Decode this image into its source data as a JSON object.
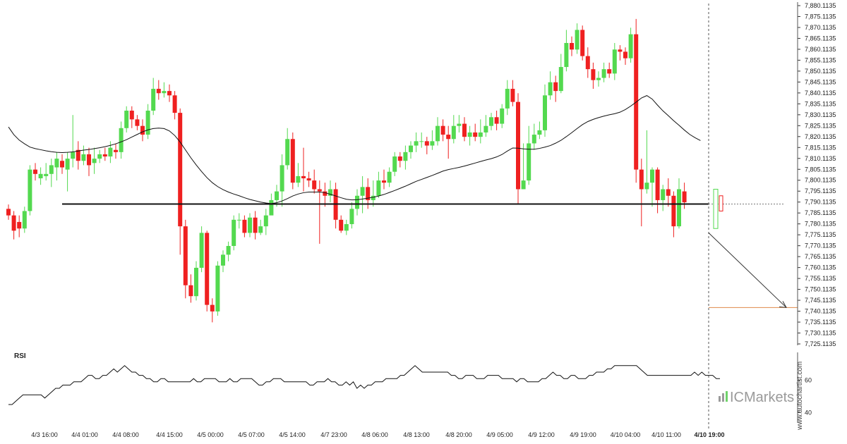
{
  "chart_data": [
    {
      "type": "candlestick",
      "title": "",
      "x_ticks": [
        "4/3 16:00",
        "4/4 01:00",
        "4/4 08:00",
        "4/4 15:00",
        "4/5 00:00",
        "4/5 07:00",
        "4/5 14:00",
        "4/7 23:00",
        "4/8 06:00",
        "4/8 13:00",
        "4/8 20:00",
        "4/9 05:00",
        "4/9 12:00",
        "4/9 19:00",
        "4/10 04:00",
        "4/10 11:00",
        "4/10 19:00"
      ],
      "y_ticks": [
        "7,880.1135",
        "7,875.1135",
        "7,870.1135",
        "7,865.1135",
        "7,860.1135",
        "7,855.1135",
        "7,850.1135",
        "7,845.1135",
        "7,840.1135",
        "7,835.1135",
        "7,830.1135",
        "7,825.1135",
        "7,820.1135",
        "7,815.1135",
        "7,810.1135",
        "7,805.1135",
        "7,800.1135",
        "7,795.1135",
        "7,790.1135",
        "7,785.1135",
        "7,780.1135",
        "7,775.1135",
        "7,770.1135",
        "7,765.1135",
        "7,760.1135",
        "7,755.1135",
        "7,750.1135",
        "7,745.1135",
        "7,740.1135",
        "7,735.1135",
        "7,730.1135",
        "7,725.1135"
      ],
      "ylim": [
        7725.1135,
        7880.1135
      ],
      "level_line": 7789.2,
      "target_level": 7741.8,
      "candles": [
        [
          7787,
          7784,
          7789,
          7782
        ],
        [
          7784,
          7777,
          7786,
          7773
        ],
        [
          7781,
          7778,
          7784,
          7774
        ],
        [
          7778,
          7786,
          7788,
          7776
        ],
        [
          7786,
          7805,
          7807,
          7784
        ],
        [
          7805,
          7803,
          7808,
          7800
        ],
        [
          7801,
          7803,
          7806,
          7798
        ],
        [
          7802,
          7803,
          7808,
          7800
        ],
        [
          7803,
          7807,
          7810,
          7797
        ],
        [
          7806,
          7810,
          7813,
          7800
        ],
        [
          7809,
          7806,
          7812,
          7803
        ],
        [
          7805,
          7810,
          7813,
          7795
        ],
        [
          7810,
          7813,
          7830,
          7806
        ],
        [
          7814,
          7809,
          7818,
          7805
        ],
        [
          7809,
          7812,
          7816,
          7807
        ],
        [
          7812,
          7807,
          7815,
          7802
        ],
        [
          7808,
          7810,
          7815,
          7803
        ],
        [
          7810,
          7812,
          7814,
          7808
        ],
        [
          7812,
          7811,
          7815,
          7809
        ],
        [
          7811,
          7815,
          7818,
          7808
        ],
        [
          7814,
          7813,
          7817,
          7810
        ],
        [
          7813,
          7824,
          7827,
          7810
        ],
        [
          7824,
          7832,
          7834,
          7822
        ],
        [
          7832,
          7828,
          7834,
          7824
        ],
        [
          7828,
          7825,
          7830,
          7823
        ],
        [
          7825,
          7821,
          7828,
          7818
        ],
        [
          7821,
          7832,
          7835,
          7819
        ],
        [
          7832,
          7842,
          7847,
          7830
        ],
        [
          7842,
          7840,
          7846,
          7837
        ],
        [
          7840,
          7841,
          7845,
          7838
        ],
        [
          7841,
          7839,
          7844,
          7836
        ],
        [
          7839,
          7831,
          7841,
          7828
        ],
        [
          7831,
          7779,
          7833,
          7766
        ],
        [
          7779,
          7752,
          7782,
          7746
        ],
        [
          7752,
          7747,
          7757,
          7744
        ],
        [
          7747,
          7760,
          7763,
          7745
        ],
        [
          7760,
          7776,
          7779,
          7758
        ],
        [
          7776,
          7743,
          7777,
          7740
        ],
        [
          7743,
          7740,
          7746,
          7735
        ],
        [
          7740,
          7761,
          7763,
          7738
        ],
        [
          7761,
          7766,
          7768,
          7758
        ],
        [
          7766,
          7770,
          7772,
          7763
        ],
        [
          7770,
          7782,
          7784,
          7768
        ],
        [
          7782,
          7782,
          7785,
          7778
        ],
        [
          7782,
          7776,
          7784,
          7774
        ],
        [
          7776,
          7783,
          7785,
          7774
        ],
        [
          7783,
          7776,
          7786,
          7773
        ],
        [
          7776,
          7779,
          7782,
          7775
        ],
        [
          7779,
          7784,
          7787,
          7775
        ],
        [
          7784,
          7791,
          7794,
          7785
        ],
        [
          7791,
          7795,
          7798,
          7788
        ],
        [
          7795,
          7807,
          7812,
          7788
        ],
        [
          7807,
          7819,
          7824,
          7805
        ],
        [
          7819,
          7799,
          7822,
          7796
        ],
        [
          7799,
          7802,
          7808,
          7797
        ],
        [
          7802,
          7801,
          7815,
          7795
        ],
        [
          7801,
          7800,
          7804,
          7797
        ],
        [
          7800,
          7796,
          7805,
          7794
        ],
        [
          7796,
          7795,
          7800,
          7771
        ],
        [
          7795,
          7793,
          7799,
          7788
        ],
        [
          7793,
          7796,
          7800,
          7790
        ],
        [
          7796,
          7782,
          7799,
          7778
        ],
        [
          7782,
          7777,
          7784,
          7776
        ],
        [
          7777,
          7780,
          7782,
          7775
        ],
        [
          7780,
          7787,
          7790,
          7778
        ],
        [
          7787,
          7793,
          7796,
          7784
        ],
        [
          7793,
          7797,
          7802,
          7785
        ],
        [
          7797,
          7791,
          7801,
          7787
        ],
        [
          7791,
          7793,
          7800,
          7788
        ],
        [
          7793,
          7800,
          7804,
          7792
        ],
        [
          7800,
          7799,
          7805,
          7796
        ],
        [
          7799,
          7804,
          7806,
          7797
        ],
        [
          7804,
          7811,
          7813,
          7802
        ],
        [
          7811,
          7809,
          7813,
          7806
        ],
        [
          7809,
          7813,
          7816,
          7805
        ],
        [
          7813,
          7816,
          7818,
          7810
        ],
        [
          7816,
          7818,
          7822,
          7813
        ],
        [
          7818,
          7818,
          7822,
          7815
        ],
        [
          7818,
          7816,
          7820,
          7812
        ],
        [
          7816,
          7818,
          7823,
          7814
        ],
        [
          7818,
          7825,
          7829,
          7816
        ],
        [
          7825,
          7821,
          7828,
          7818
        ],
        [
          7821,
          7819,
          7825,
          7810
        ],
        [
          7819,
          7825,
          7830,
          7817
        ],
        [
          7825,
          7826,
          7830,
          7822
        ],
        [
          7826,
          7820,
          7829,
          7818
        ],
        [
          7820,
          7822,
          7825,
          7816
        ],
        [
          7822,
          7820,
          7826,
          7818
        ],
        [
          7820,
          7822,
          7828,
          7817
        ],
        [
          7822,
          7825,
          7830,
          7820
        ],
        [
          7825,
          7829,
          7831,
          7823
        ],
        [
          7829,
          7826,
          7832,
          7823
        ],
        [
          7826,
          7833,
          7835,
          7824
        ],
        [
          7833,
          7842,
          7846,
          7830
        ],
        [
          7842,
          7836,
          7846,
          7834
        ],
        [
          7836,
          7796,
          7840,
          7789
        ],
        [
          7796,
          7800,
          7817,
          7796
        ],
        [
          7800,
          7817,
          7825,
          7798
        ],
        [
          7817,
          7821,
          7826,
          7814
        ],
        [
          7821,
          7823,
          7827,
          7819
        ],
        [
          7823,
          7839,
          7844,
          7820
        ],
        [
          7839,
          7845,
          7850,
          7837
        ],
        [
          7845,
          7841,
          7848,
          7836
        ],
        [
          7841,
          7852,
          7858,
          7840
        ],
        [
          7852,
          7863,
          7869,
          7850
        ],
        [
          7863,
          7860,
          7866,
          7857
        ],
        [
          7860,
          7869,
          7872,
          7858
        ],
        [
          7869,
          7857,
          7871,
          7855
        ],
        [
          7857,
          7851,
          7861,
          7847
        ],
        [
          7851,
          7846,
          7854,
          7842
        ],
        [
          7846,
          7847,
          7850,
          7843
        ],
        [
          7847,
          7851,
          7854,
          7845
        ],
        [
          7851,
          7849,
          7854,
          7847
        ],
        [
          7849,
          7860,
          7863,
          7846
        ],
        [
          7860,
          7859,
          7862,
          7855
        ],
        [
          7859,
          7856,
          7861,
          7853
        ],
        [
          7856,
          7867,
          7870,
          7854
        ],
        [
          7867,
          7805,
          7874,
          7799
        ],
        [
          7805,
          7796,
          7810,
          7779
        ],
        [
          7796,
          7799,
          7823,
          7794
        ],
        [
          7799,
          7805,
          7806,
          7788
        ],
        [
          7805,
          7791,
          7806,
          7785
        ],
        [
          7791,
          7796,
          7798,
          7786
        ],
        [
          7796,
          7793,
          7801,
          7788
        ],
        [
          7793,
          7779,
          7795,
          7774
        ],
        [
          7779,
          7796,
          7801,
          7778
        ],
        [
          7795,
          7790,
          7799,
          7787
        ]
      ],
      "ma": [
        7824.5,
        7821.0,
        7818.5,
        7816.8,
        7815.3,
        7814.6,
        7814.1,
        7813.6,
        7813.2,
        7812.9,
        7812.8,
        7812.9,
        7813.1,
        7813.5,
        7813.9,
        7814.2,
        7814.6,
        7815.0,
        7815.5,
        7816.1,
        7816.8,
        7817.7,
        7818.7,
        7819.9,
        7821.1,
        7822.3,
        7823.2,
        7823.8,
        7824.0,
        7823.8,
        7822.7,
        7820.6,
        7817.6,
        7814.0,
        7810.4,
        7807.1,
        7804.1,
        7801.3,
        7799.0,
        7797.2,
        7795.8,
        7794.7,
        7793.8,
        7793.0,
        7792.1,
        7791.3,
        7790.7,
        7790.1,
        7789.7,
        7789.4,
        7789.8,
        7790.6,
        7791.7,
        7792.9,
        7793.8,
        7794.4,
        7794.7,
        7794.7,
        7794.7,
        7794.4,
        7793.7,
        7792.9,
        7792.1,
        7791.4,
        7791.1,
        7791.2,
        7791.5,
        7791.9,
        7792.3,
        7792.9,
        7793.6,
        7794.5,
        7795.4,
        7796.4,
        7797.4,
        7798.5,
        7799.6,
        7800.5,
        7801.4,
        7802.3,
        7803.3,
        7804.3,
        7805.0,
        7805.5,
        7806.0,
        7806.6,
        7807.3,
        7808.0,
        7808.7,
        7809.4,
        7810.0,
        7810.8,
        7811.9,
        7813.5,
        7814.9,
        7814.8,
        7814.5,
        7814.3,
        7814.3,
        7814.7,
        7815.3,
        7816.0,
        7817.1,
        7818.4,
        7820.1,
        7821.9,
        7823.8,
        7825.6,
        7827.0,
        7828.0,
        7828.8,
        7829.5,
        7830.1,
        7830.6,
        7831.3,
        7832.5,
        7834.1,
        7835.9,
        7837.8,
        7838.9,
        7837.3,
        7834.5,
        7831.9,
        7829.7,
        7827.4,
        7825.3,
        7823.1,
        7821.1,
        7819.6,
        7818.3
      ]
    },
    {
      "type": "line",
      "title": "RSI",
      "y_ticks": [
        "60",
        "40"
      ],
      "ylim": [
        35,
        75
      ],
      "values": [
        45,
        45,
        47,
        49,
        51,
        51,
        51,
        51,
        51,
        51,
        49,
        51,
        53,
        55,
        55,
        57,
        57,
        57,
        59,
        59,
        59,
        61,
        63,
        63,
        61,
        61,
        63,
        63,
        65,
        67,
        65,
        67,
        69,
        67,
        65,
        65,
        63,
        63,
        61,
        61,
        59,
        59,
        61,
        61,
        59,
        59,
        59,
        59,
        59,
        59,
        59,
        61,
        59,
        59,
        61,
        61,
        61,
        61,
        59,
        59,
        59,
        61,
        59,
        59,
        61,
        61,
        61,
        61,
        59,
        57,
        57,
        59,
        59,
        61,
        61,
        61,
        59,
        59,
        59,
        59,
        59,
        59,
        59,
        57,
        57,
        59,
        59,
        59,
        61,
        59,
        59,
        57,
        57,
        59,
        57,
        59,
        55,
        57,
        55,
        57,
        57,
        59,
        59,
        59,
        61,
        61,
        61,
        61,
        63,
        63,
        65,
        67,
        69,
        67,
        65,
        65,
        65,
        65,
        65,
        65,
        65,
        65,
        63,
        63,
        61,
        61,
        63,
        63,
        63,
        61,
        61,
        61,
        63,
        63,
        63,
        63,
        61,
        61,
        61,
        61,
        59,
        61,
        61,
        59,
        59,
        59,
        59,
        61,
        61,
        63,
        65,
        63,
        63,
        61,
        61,
        63,
        63,
        61,
        61,
        61,
        63,
        63,
        65,
        65,
        65,
        67,
        67,
        69,
        69,
        69,
        69,
        69,
        69,
        69,
        67,
        65,
        63,
        63,
        63,
        63,
        63,
        63,
        63,
        63,
        63,
        63,
        63,
        63,
        63,
        65,
        63,
        65,
        63,
        63,
        63,
        61,
        61
      ]
    }
  ],
  "watermark": {
    "site": "www.autochartist.com",
    "logo": "ICMarkets"
  },
  "colors": {
    "up": "#53d94f",
    "down": "#ef2020",
    "line": "#111111",
    "target": "#e08a4a",
    "dashed": "#555555"
  }
}
